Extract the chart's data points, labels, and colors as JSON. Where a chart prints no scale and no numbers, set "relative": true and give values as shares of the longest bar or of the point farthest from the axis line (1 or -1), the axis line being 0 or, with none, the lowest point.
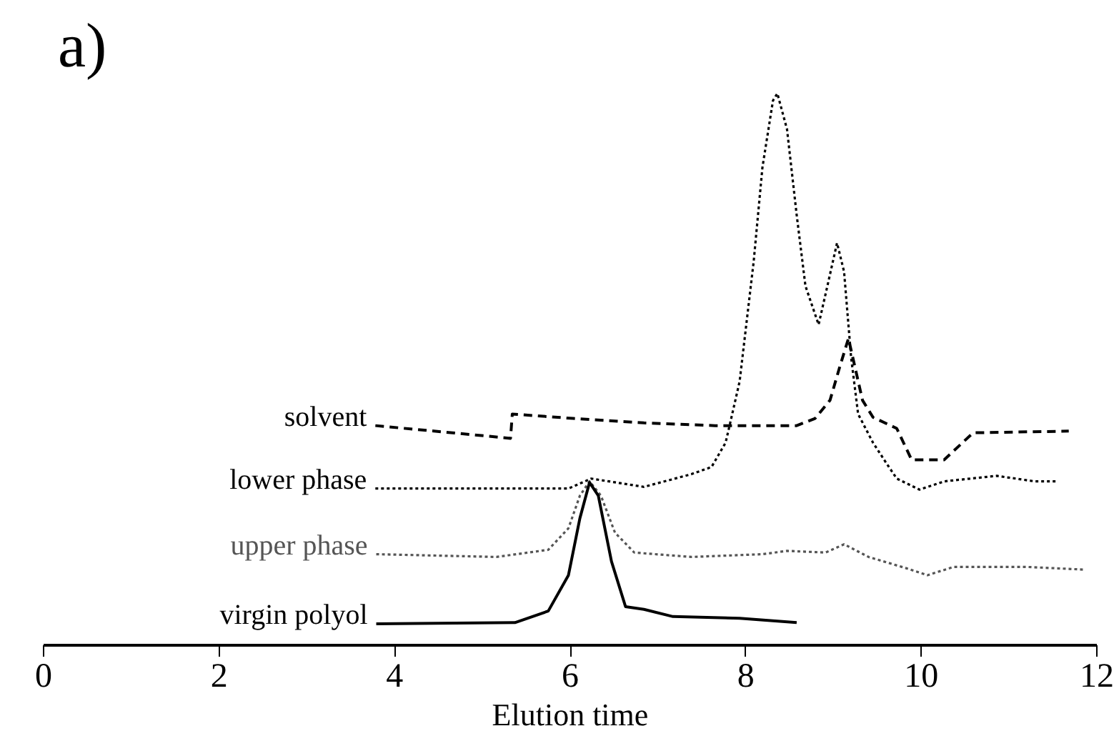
{
  "chart_data": {
    "type": "line",
    "title": "a)",
    "xlabel": "Elution time",
    "relative": true,
    "xlim": [
      0,
      12
    ],
    "xticks": [
      0,
      2,
      4,
      6,
      8,
      10,
      12
    ],
    "grid": false,
    "tick_labels": "x",
    "series": [
      {
        "name": "solvent",
        "color": "#000000",
        "line_style": "dashed",
        "x": [
          3.78,
          5.32,
          5.34,
          6.03,
          6.84,
          7.65,
          8.47,
          8.58,
          8.79,
          8.96,
          9.07,
          9.17,
          9.33,
          9.45,
          9.72,
          9.89,
          10.26,
          10.59,
          11.68
        ],
        "values": [
          0.398,
          0.375,
          0.419,
          0.411,
          0.403,
          0.398,
          0.398,
          0.398,
          0.411,
          0.444,
          0.504,
          0.556,
          0.444,
          0.413,
          0.393,
          0.336,
          0.336,
          0.385,
          0.388
        ]
      },
      {
        "name": "lower phase",
        "color": "#000000",
        "line_style": "dotted",
        "x": [
          3.78,
          5.98,
          6.24,
          6.84,
          7.38,
          7.61,
          7.77,
          7.82,
          7.93,
          8.09,
          8.19,
          8.31,
          8.36,
          8.47,
          8.58,
          8.68,
          8.83,
          8.93,
          9.04,
          9.12,
          9.2,
          9.28,
          9.45,
          9.61,
          9.72,
          9.98,
          10.26,
          10.86,
          11.29,
          11.56
        ],
        "values": [
          0.284,
          0.284,
          0.302,
          0.287,
          0.31,
          0.323,
          0.367,
          0.401,
          0.478,
          0.695,
          0.866,
          0.987,
          1.0,
          0.935,
          0.78,
          0.651,
          0.581,
          0.651,
          0.729,
          0.677,
          0.522,
          0.419,
          0.367,
          0.328,
          0.302,
          0.282,
          0.297,
          0.307,
          0.297,
          0.297
        ]
      },
      {
        "name": "upper phase",
        "color": "#555555",
        "line_style": "dotted",
        "x": [
          3.79,
          5.16,
          5.75,
          5.98,
          6.11,
          6.22,
          6.35,
          6.51,
          6.73,
          7.38,
          8.19,
          8.47,
          8.91,
          9.12,
          9.4,
          9.82,
          10.07,
          10.37,
          11.19,
          11.86
        ],
        "values": [
          0.165,
          0.16,
          0.173,
          0.212,
          0.271,
          0.297,
          0.271,
          0.204,
          0.168,
          0.16,
          0.165,
          0.171,
          0.168,
          0.183,
          0.16,
          0.14,
          0.127,
          0.142,
          0.142,
          0.137
        ]
      },
      {
        "name": "virgin polyol",
        "color": "#000000",
        "line_style": "solid",
        "x": [
          3.79,
          5.37,
          5.75,
          5.98,
          6.11,
          6.22,
          6.32,
          6.47,
          6.63,
          6.84,
          7.17,
          7.93,
          8.58
        ],
        "values": [
          0.039,
          0.041,
          0.062,
          0.127,
          0.23,
          0.295,
          0.271,
          0.152,
          0.07,
          0.065,
          0.052,
          0.049,
          0.041
        ]
      }
    ]
  }
}
